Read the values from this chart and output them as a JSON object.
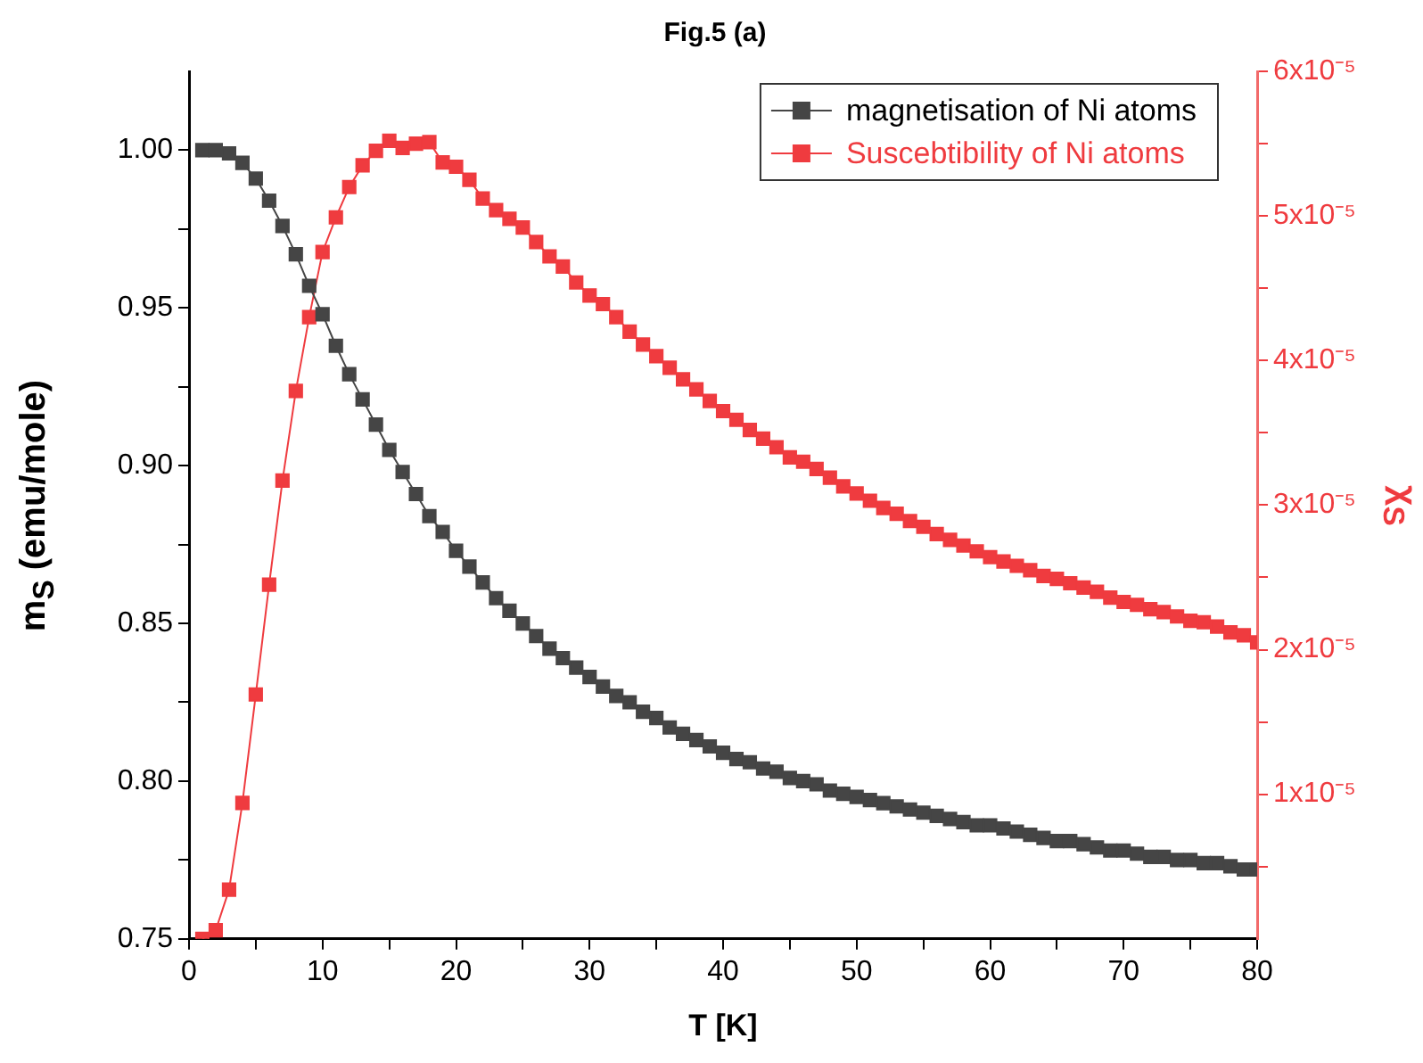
{
  "chart_data": {
    "type": "line",
    "title": "Fig.5 (a)",
    "xlabel": "T [K]",
    "ylabel": "m$_{S}$ (emu/mole)",
    "y2label": "χ$_{S}$",
    "x": [
      1,
      2,
      3,
      4,
      5,
      6,
      7,
      8,
      9,
      10,
      11,
      12,
      13,
      14,
      15,
      16,
      17,
      18,
      19,
      20,
      21,
      22,
      23,
      24,
      25,
      26,
      27,
      28,
      29,
      30,
      31,
      32,
      33,
      34,
      35,
      36,
      37,
      38,
      39,
      40,
      41,
      42,
      43,
      44,
      45,
      46,
      47,
      48,
      49,
      50,
      51,
      52,
      53,
      54,
      55,
      56,
      57,
      58,
      59,
      60,
      61,
      62,
      63,
      64,
      65,
      66,
      67,
      68,
      69,
      70,
      71,
      72,
      73,
      74,
      75,
      76,
      77,
      78,
      79,
      80
    ],
    "series": [
      {
        "name": "magnetisation of Ni atoms",
        "color": "#454545",
        "values": [
          1.0,
          1.0,
          0.999,
          0.996,
          0.991,
          0.984,
          0.976,
          0.967,
          0.957,
          0.948,
          0.938,
          0.929,
          0.921,
          0.913,
          0.905,
          0.898,
          0.891,
          0.884,
          0.879,
          0.873,
          0.868,
          0.863,
          0.858,
          0.854,
          0.85,
          0.846,
          0.842,
          0.839,
          0.836,
          0.833,
          0.83,
          0.827,
          0.825,
          0.822,
          0.82,
          0.817,
          0.815,
          0.813,
          0.811,
          0.809,
          0.807,
          0.806,
          0.804,
          0.803,
          0.801,
          0.8,
          0.799,
          0.797,
          0.796,
          0.795,
          0.794,
          0.793,
          0.792,
          0.791,
          0.79,
          0.789,
          0.788,
          0.787,
          0.786,
          0.786,
          0.785,
          0.784,
          0.783,
          0.782,
          0.781,
          0.781,
          0.78,
          0.779,
          0.778,
          0.778,
          0.777,
          0.776,
          0.776,
          0.775,
          0.775,
          0.774,
          0.774,
          0.773,
          0.772,
          0.772
        ]
      },
      {
        "name": "Suscebtibility of Ni atoms",
        "color": "#ef3b3f",
        "axis": "y2",
        "values": [
          0.0,
          6e-07,
          3.4e-06,
          9.4e-06,
          1.69e-05,
          2.45e-05,
          3.17e-05,
          3.79e-05,
          4.3e-05,
          4.75e-05,
          4.99e-05,
          5.2e-05,
          5.35e-05,
          5.45e-05,
          5.52e-05,
          5.47e-05,
          5.5e-05,
          5.51e-05,
          5.37e-05,
          5.34e-05,
          5.25e-05,
          5.12e-05,
          5.04e-05,
          4.98e-05,
          4.92e-05,
          4.82e-05,
          4.72e-05,
          4.65e-05,
          4.54e-05,
          4.45e-05,
          4.39e-05,
          4.3e-05,
          4.2e-05,
          4.11e-05,
          4.03e-05,
          3.95e-05,
          3.87e-05,
          3.8e-05,
          3.72e-05,
          3.65e-05,
          3.59e-05,
          3.52e-05,
          3.46e-05,
          3.4e-05,
          3.33e-05,
          3.3e-05,
          3.25e-05,
          3.19e-05,
          3.13e-05,
          3.08e-05,
          3.03e-05,
          2.98e-05,
          2.94e-05,
          2.89e-05,
          2.85e-05,
          2.8e-05,
          2.76e-05,
          2.72e-05,
          2.68e-05,
          2.64e-05,
          2.61e-05,
          2.58e-05,
          2.55e-05,
          2.51e-05,
          2.49e-05,
          2.46e-05,
          2.43e-05,
          2.4e-05,
          2.36e-05,
          2.33e-05,
          2.31e-05,
          2.28e-05,
          2.26e-05,
          2.23e-05,
          2.2e-05,
          2.19e-05,
          2.16e-05,
          2.12e-05,
          2.1e-05,
          2.05e-05
        ]
      }
    ],
    "xlim": [
      0,
      80
    ],
    "xticks": [
      0,
      {
        "value": 5,
        "label": null
      },
      10,
      {
        "value": 15,
        "label": null
      },
      20,
      {
        "value": 25,
        "label": null
      },
      30,
      {
        "value": 35,
        "label": null
      },
      40,
      {
        "value": 45,
        "label": null
      },
      50,
      {
        "value": 55,
        "label": null
      },
      60,
      {
        "value": 65,
        "label": null
      },
      70,
      {
        "value": 75,
        "label": null
      },
      80
    ],
    "ylim": [
      0.75,
      1.025
    ],
    "yticks": [
      {
        "value": 0.75,
        "label": "0.75"
      },
      {
        "value": 0.775,
        "label": null
      },
      {
        "value": 0.8,
        "label": "0.80"
      },
      {
        "value": 0.825,
        "label": null
      },
      {
        "value": 0.85,
        "label": "0.85"
      },
      {
        "value": 0.875,
        "label": null
      },
      {
        "value": 0.9,
        "label": "0.90"
      },
      {
        "value": 0.925,
        "label": null
      },
      {
        "value": 0.95,
        "label": "0.95"
      },
      {
        "value": 0.975,
        "label": null
      },
      {
        "value": 1,
        "label": "1.00"
      }
    ],
    "y2lim": [
      0,
      6e-05
    ],
    "y2ticks": [
      {
        "value": 5e-06,
        "label": null
      },
      {
        "value": 1e-05,
        "label": "1x10⁻⁵"
      },
      {
        "value": 1.5e-05,
        "label": null
      },
      {
        "value": 2e-05,
        "label": "2x10⁻⁵"
      },
      {
        "value": 2.5e-05,
        "label": null
      },
      {
        "value": 3e-05,
        "label": "3x10⁻⁵"
      },
      {
        "value": 3.5e-05,
        "label": null
      },
      {
        "value": 4e-05,
        "label": "4x10⁻⁵"
      },
      {
        "value": 4.5e-05,
        "label": null
      },
      {
        "value": 5e-05,
        "label": "5x10⁻⁵"
      },
      {
        "value": 5.5e-05,
        "label": null
      },
      {
        "value": 6e-05,
        "label": "6x10⁻⁵"
      }
    ],
    "legend": "top right",
    "marker": "square",
    "line_style": "solid"
  }
}
